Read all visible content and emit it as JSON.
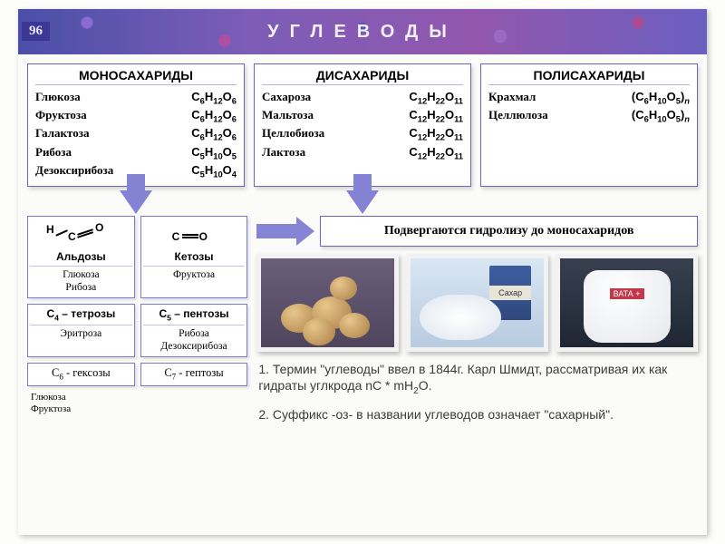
{
  "page_number": "96",
  "title": "УГЛЕВОДЫ",
  "columns": [
    {
      "heading": "МОНОСАХАРИДЫ",
      "rows": [
        {
          "name": "Глюкоза",
          "formula": "C<sub>6</sub>H<sub>12</sub>O<sub>6</sub>"
        },
        {
          "name": "Фруктоза",
          "formula": "C<sub>6</sub>H<sub>12</sub>O<sub>6</sub>"
        },
        {
          "name": "Галактоза",
          "formula": "C<sub>6</sub>H<sub>12</sub>O<sub>6</sub>"
        },
        {
          "name": "Рибоза",
          "formula": "C<sub>5</sub>H<sub>10</sub>O<sub>5</sub>"
        },
        {
          "name": "Дезоксирибоза",
          "formula": "C<sub>5</sub>H<sub>10</sub>O<sub>4</sub>"
        }
      ]
    },
    {
      "heading": "ДИСАХАРИДЫ",
      "rows": [
        {
          "name": "Сахароза",
          "formula": "C<sub>12</sub>H<sub>22</sub>O<sub>11</sub>"
        },
        {
          "name": "Мальтоза",
          "formula": "C<sub>12</sub>H<sub>22</sub>O<sub>11</sub>"
        },
        {
          "name": "Целлобиоза",
          "formula": "C<sub>12</sub>H<sub>22</sub>O<sub>11</sub>"
        },
        {
          "name": "Лактоза",
          "formula": "C<sub>12</sub>H<sub>22</sub>O<sub>11</sub>"
        }
      ]
    },
    {
      "heading": "ПОЛИСАХАРИДЫ",
      "rows": [
        {
          "name": "Крахмал",
          "formula": "(C<sub>6</sub>H<sub>10</sub>O<sub>5</sub>)<i><sub>n</sub></i>"
        },
        {
          "name": "Целлюлоза",
          "formula": "(C<sub>6</sub>H<sub>10</sub>O<sub>5</sub>)<i><sub>n</sub></i>"
        }
      ]
    }
  ],
  "ald_ket": {
    "left": {
      "head": "Альдозы",
      "sub1": "Глюкоза",
      "sub2": "Рибоза"
    },
    "right": {
      "head": "Кетозы",
      "sub1": "Фруктоза"
    }
  },
  "sizes": {
    "row1_left": {
      "head": "C<sub>4</sub> – тетрозы",
      "sub": "Эритроза"
    },
    "row1_right": {
      "head": "C<sub>5</sub> – пентозы",
      "sub": "Рибоза\nДезоксирибоза"
    },
    "row2_left": {
      "head": "C<sub>6</sub> - гексозы"
    },
    "row2_right": {
      "head": "C<sub>7</sub> - гептозы"
    },
    "below_left": "Глюкоза\nФруктоза"
  },
  "hydrolysis_text": "Подвергаются гидролизу до моносахаридов",
  "sugar_box_label": "Сахар",
  "cotton_label": "ВАТА +",
  "footnote_1": "1. Термин \"углеводы\" ввел в 1844г. Карл Шмидт, рассматривая их как гидраты углкрода nC * mH<sub>2</sub>O.",
  "footnote_2": "2. Суффикс -оз- в названии углеводов означает \"сахарный\"."
}
